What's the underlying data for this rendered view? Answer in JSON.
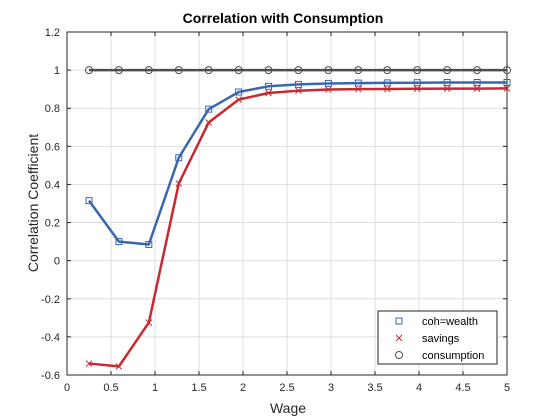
{
  "chart_data": {
    "type": "line",
    "title": "Correlation with Consumption",
    "xlabel": "Wage",
    "ylabel": "Correlation Coefficient",
    "xlim": [
      0,
      5
    ],
    "ylim": [
      -0.6,
      1.2
    ],
    "xticks": [
      0,
      0.5,
      1,
      1.5,
      2,
      2.5,
      3,
      3.5,
      4,
      4.5,
      5
    ],
    "xtick_labels": [
      "0",
      "0.5",
      "1",
      "1.5",
      "2",
      "2.5",
      "3",
      "3.5",
      "4",
      "4.5",
      "5"
    ],
    "yticks": [
      -0.6,
      -0.4,
      -0.2,
      0,
      0.2,
      0.4,
      0.6,
      0.8,
      1,
      1.2
    ],
    "ytick_labels": [
      "-0.6",
      "-0.4",
      "-0.2",
      "0",
      "0.2",
      "0.4",
      "0.6",
      "0.8",
      "1",
      "1.2"
    ],
    "grid": true,
    "legend_position": "bottom-right",
    "x": [
      0.25,
      0.59,
      0.93,
      1.27,
      1.61,
      1.95,
      2.29,
      2.63,
      2.97,
      3.31,
      3.64,
      3.98,
      4.32,
      4.66,
      5.0
    ],
    "series": [
      {
        "name": "coh=wealth",
        "color": "#3a66b0",
        "marker": "square",
        "values": [
          0.315,
          0.1,
          0.085,
          0.54,
          0.795,
          0.885,
          0.915,
          0.925,
          0.93,
          0.932,
          0.933,
          0.934,
          0.935,
          0.935,
          0.935
        ]
      },
      {
        "name": "savings",
        "color": "#c8282f",
        "marker": "x",
        "values": [
          -0.54,
          -0.555,
          -0.325,
          0.405,
          0.725,
          0.845,
          0.88,
          0.892,
          0.898,
          0.9,
          0.901,
          0.902,
          0.903,
          0.903,
          0.904
        ]
      },
      {
        "name": "consumption",
        "color": "#4d4d4d",
        "marker": "circle",
        "values": [
          1,
          1,
          1,
          1,
          1,
          1,
          1,
          1,
          1,
          1,
          1,
          1,
          1,
          1,
          1
        ]
      }
    ]
  }
}
